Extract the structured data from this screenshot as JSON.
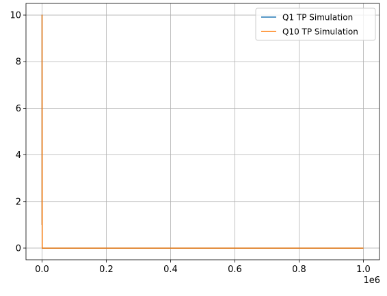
{
  "chart_data": {
    "type": "line",
    "title": "",
    "xlabel": "",
    "ylabel": "",
    "x_offset_text": "1e6",
    "xlim": [
      -0.05,
      1.05
    ],
    "ylim": [
      -0.5,
      10.5
    ],
    "x_ticks": [
      0.0,
      0.2,
      0.4,
      0.6,
      0.8,
      1.0
    ],
    "x_tick_labels": [
      "0.0",
      "0.2",
      "0.4",
      "0.6",
      "0.8",
      "1.0"
    ],
    "y_ticks": [
      0,
      2,
      4,
      6,
      8,
      10
    ],
    "y_tick_labels": [
      "0",
      "2",
      "4",
      "6",
      "8",
      "10"
    ],
    "grid": true,
    "legend_position": "top-right",
    "series": [
      {
        "name": "Q1 TP Simulation",
        "color": "#1f77b4",
        "x": [
          0.0,
          0.0,
          0.0005,
          0.002,
          1.0
        ],
        "y": [
          1.0,
          10.0,
          0.0,
          0.0,
          0.0
        ]
      },
      {
        "name": "Q10 TP Simulation",
        "color": "#ff7f0e",
        "x": [
          0.0,
          0.0,
          0.0005,
          0.002,
          1.0
        ],
        "y": [
          1.0,
          10.0,
          0.0,
          0.0,
          0.0
        ]
      }
    ]
  }
}
